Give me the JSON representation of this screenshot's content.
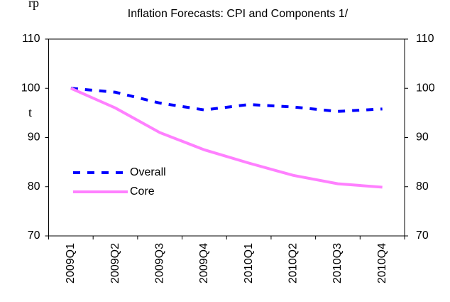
{
  "chart_data": {
    "type": "line",
    "title": "Inflation Forecasts: CPI and Components 1/",
    "annotations": [
      "rp",
      "t"
    ],
    "categories": [
      "2009Q1",
      "2009Q2",
      "2009Q3",
      "2009Q4",
      "2010Q1",
      "2010Q2",
      "2010Q3",
      "2010Q4"
    ],
    "series": [
      {
        "name": "Overall",
        "color": "#0000ff",
        "dashed": true,
        "values": [
          100,
          99.2,
          97,
          95.6,
          96.7,
          96.2,
          95.3,
          95.8
        ]
      },
      {
        "name": "Core",
        "color": "#ff80ff",
        "dashed": false,
        "values": [
          100,
          96,
          91,
          87.5,
          84.8,
          82.3,
          80.6,
          79.9
        ]
      }
    ],
    "ylim": [
      70,
      110
    ],
    "yticks": [
      70,
      80,
      90,
      100,
      110
    ],
    "y2lim": [
      70,
      110
    ],
    "y2ticks": [
      70,
      80,
      90,
      100,
      110
    ],
    "grid": false
  }
}
